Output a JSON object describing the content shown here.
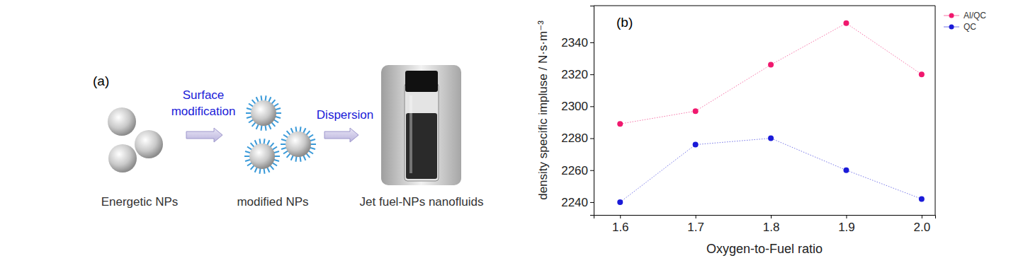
{
  "diagram": {
    "panel_label": "(a)",
    "steps": [
      {
        "label": "Energetic NPs"
      },
      {
        "label": "modified NPs"
      },
      {
        "label": "Jet fuel-NPs nanofluids"
      }
    ],
    "arrows": [
      {
        "label": "Surface modification"
      },
      {
        "label": "Dispersion"
      }
    ]
  },
  "chart_data": {
    "type": "line",
    "title": "(b)",
    "x_label": "Oxygen-to-Fuel ratio",
    "y_label": "density specific impluse / N·s·m⁻³",
    "x": [
      1.6,
      1.7,
      1.8,
      1.9,
      2.0
    ],
    "series": [
      {
        "name": "Al/QC",
        "color": "#f0186e",
        "values": [
          2289,
          2297,
          2326,
          2352,
          2320
        ],
        "marker": "circle",
        "line_style": "dotted"
      },
      {
        "name": "QC",
        "color": "#1a1ad8",
        "values": [
          2240,
          2276,
          2280,
          2260,
          2242
        ],
        "marker": "circle",
        "line_style": "dotted"
      }
    ],
    "xlim": [
      1.565,
      2.018
    ],
    "xticks": [
      1.6,
      1.7,
      1.8,
      1.9,
      {
        "value": 2.0,
        "label": "2.0"
      }
    ],
    "ylim": [
      2232,
      2363
    ],
    "yticks": [
      2240,
      2260,
      2280,
      2300,
      2320,
      2340
    ],
    "legend": "top-right",
    "grid": false
  }
}
